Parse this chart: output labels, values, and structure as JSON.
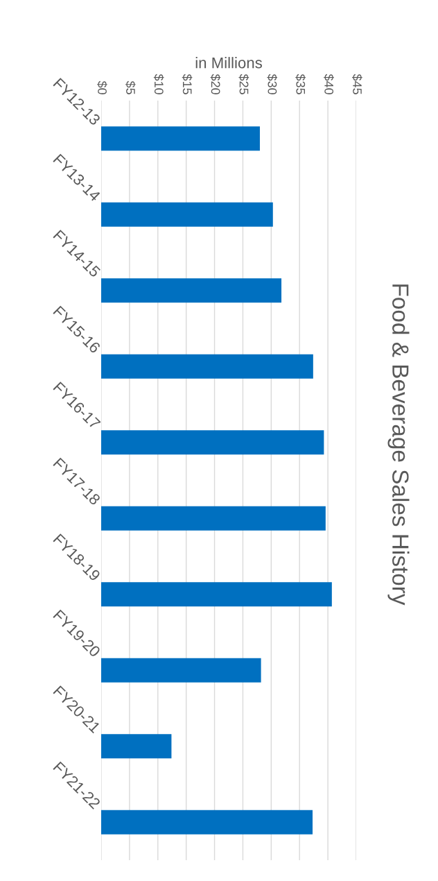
{
  "chart_data": {
    "type": "bar",
    "orientation": "horizontal",
    "title": "Food & Beverage Sales History",
    "xlabel": "in Millions",
    "categories": [
      "FY12-13",
      "FY13-14",
      "FY14-15",
      "FY15-16",
      "FY16-17",
      "FY17-18",
      "FY18-19",
      "FY19-20",
      "FY20-21",
      "FY21-22"
    ],
    "values": [
      28.0,
      30.3,
      31.8,
      37.4,
      39.3,
      39.6,
      40.7,
      28.2,
      12.4,
      37.3
    ],
    "color": "#0070c0",
    "xlim": [
      0,
      45
    ],
    "xticks": [
      {
        "value": 0,
        "label": "$0"
      },
      {
        "value": 5,
        "label": "$5"
      },
      {
        "value": 10,
        "label": "$10"
      },
      {
        "value": 15,
        "label": "$15"
      },
      {
        "value": 20,
        "label": "$20"
      },
      {
        "value": 25,
        "label": "$25"
      },
      {
        "value": 30,
        "label": "$30"
      },
      {
        "value": 35,
        "label": "$35"
      },
      {
        "value": 40,
        "label": "$40"
      },
      {
        "value": 45,
        "label": "$45"
      }
    ],
    "grid": "x",
    "legend": false
  }
}
